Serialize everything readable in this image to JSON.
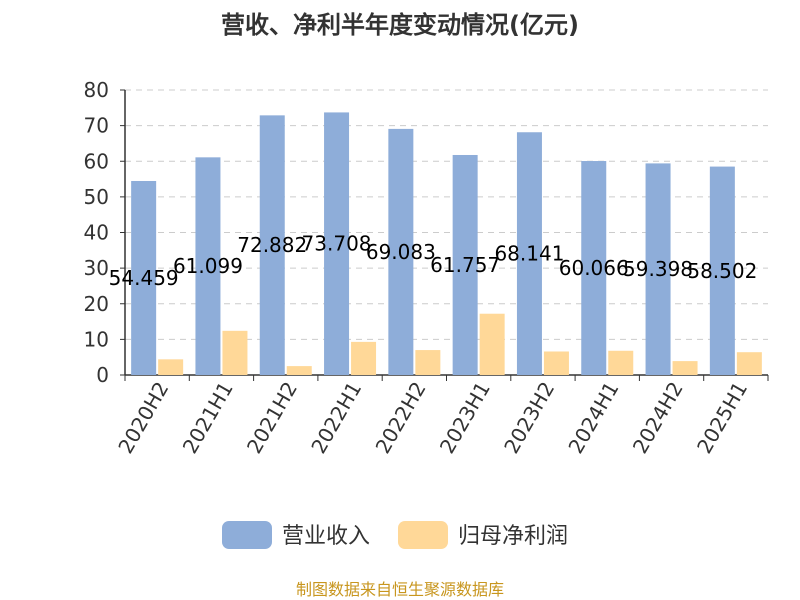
{
  "chart_data": {
    "type": "bar",
    "title": "营收、净利半年度变动情况(亿元)",
    "categories": [
      "2020H2",
      "2021H1",
      "2021H2",
      "2022H1",
      "2022H2",
      "2023H1",
      "2023H2",
      "2024H1",
      "2024H2",
      "2025H1"
    ],
    "series": [
      {
        "name": "营业收入",
        "color": "#8eadd9",
        "values": [
          54.459,
          61.099,
          72.882,
          73.708,
          69.083,
          61.757,
          68.141,
          60.066,
          59.398,
          58.502
        ],
        "labels": [
          "54.459",
          "61.099",
          "72.882",
          "73.708",
          "69.083",
          "61.757",
          "68.141",
          "60.066",
          "59.398",
          "58.502"
        ]
      },
      {
        "name": "归母净利润",
        "color": "#ffd898",
        "values": [
          4.4,
          12.4,
          2.5,
          9.3,
          7.0,
          17.2,
          6.6,
          6.8,
          3.9,
          6.4
        ]
      }
    ],
    "yticks": [
      "0",
      "10",
      "20",
      "30",
      "40",
      "50",
      "60",
      "70",
      "80"
    ],
    "ylim": [
      0,
      80
    ],
    "grid": true,
    "legend": "bottom"
  },
  "source": "制图数据来自恒生聚源数据库"
}
